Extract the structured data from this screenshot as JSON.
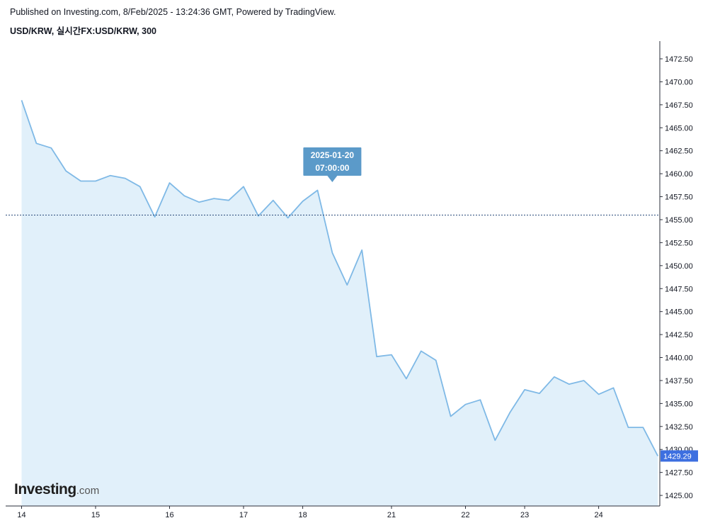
{
  "header": {
    "published": "Published on Investing.com, 8/Feb/2025 - 13:24:36 GMT, Powered by TradingView.",
    "symbol": "USD/KRW, 실시간FX:USD/KRW, 300"
  },
  "logo": {
    "brand": "Investing",
    "suffix": ".com"
  },
  "colors": {
    "line": "#7fb9e6",
    "area": "#e1f0fa",
    "badge": "#5b9ac9",
    "price_badge": "#3d6fe0",
    "dotted": "#2a4a7a"
  },
  "chart_data": {
    "type": "area",
    "title": "",
    "xlabel": "",
    "ylabel": "",
    "ylim": [
      1424.0,
      1474.5
    ],
    "y_ticks": [
      "1425.00",
      "1427.50",
      "1430.00",
      "1432.50",
      "1435.00",
      "1437.50",
      "1440.00",
      "1442.50",
      "1445.00",
      "1447.50",
      "1450.00",
      "1452.50",
      "1455.00",
      "1457.50",
      "1460.00",
      "1462.50",
      "1465.00",
      "1467.50",
      "1470.00",
      "1472.50"
    ],
    "x_ticks": [
      {
        "label": "14",
        "index": 0
      },
      {
        "label": "15",
        "index": 5
      },
      {
        "label": "16",
        "index": 10
      },
      {
        "label": "17",
        "index": 15
      },
      {
        "label": "18",
        "index": 19
      },
      {
        "label": "21",
        "index": 25
      },
      {
        "label": "22",
        "index": 30
      },
      {
        "label": "23",
        "index": 34
      },
      {
        "label": "24",
        "index": 39
      }
    ],
    "series": [
      {
        "values": [
          1468.0,
          1463.3,
          1462.8,
          1460.3,
          1459.2,
          1459.2,
          1459.8,
          1459.5,
          1458.6,
          1455.3,
          1459.0,
          1457.6,
          1456.9,
          1457.3,
          1457.1,
          1458.6,
          1455.4,
          1457.1,
          1455.2,
          1457.0,
          1458.2,
          1451.4,
          1447.9,
          1451.7,
          1440.1,
          1440.3,
          1437.7,
          1440.7,
          1439.7,
          1433.6,
          1434.9,
          1435.4,
          1431.0,
          1434.0,
          1436.5,
          1436.1,
          1437.9,
          1437.1,
          1437.5,
          1436.0,
          1436.7,
          1432.4,
          1432.4,
          1429.29
        ]
      }
    ],
    "crosshair_price": 1455.5,
    "tooltip": {
      "date": "2025-01-20",
      "time": "07:00:00",
      "index": 21
    },
    "last_price": "1429.29",
    "last_value": 1429.29
  }
}
